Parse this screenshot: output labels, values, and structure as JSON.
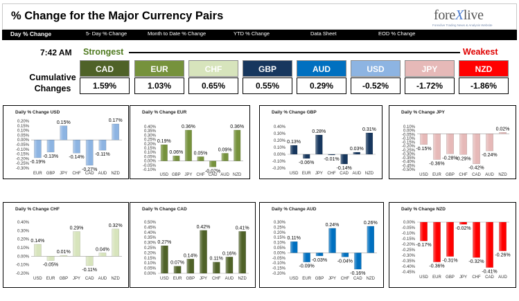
{
  "header": {
    "title": "% Change for the Major Currency Pairs",
    "logo": {
      "main_a": "fore",
      "main_x": "X",
      "main_b": "live",
      "sub": "Forexlive Trading News & Analysis Website"
    }
  },
  "nav": {
    "items": [
      {
        "label": "Day % Change",
        "active": true
      },
      {
        "label": "5- Day % Change",
        "active": false
      },
      {
        "label": "Month to Date % Change",
        "active": false
      },
      {
        "label": "YTD % Change",
        "active": false
      },
      {
        "label": "Data Sheet",
        "active": false
      },
      {
        "label": "EOD % Change",
        "active": false
      }
    ]
  },
  "summary": {
    "time": "7:42 AM",
    "strongest_label": "Strongest",
    "weakest_label": "Weakest",
    "cumulative_label_1": "Cumulative",
    "cumulative_label_2": "Changes",
    "currencies": [
      {
        "code": "CAD",
        "value": "1.59%",
        "color": "#4f6228"
      },
      {
        "code": "EUR",
        "value": "1.03%",
        "color": "#76923c"
      },
      {
        "code": "CHF",
        "value": "0.65%",
        "color": "#d7e4bc"
      },
      {
        "code": "GBP",
        "value": "0.55%",
        "color": "#17375e"
      },
      {
        "code": "AUD",
        "value": "0.29%",
        "color": "#0070c0"
      },
      {
        "code": "USD",
        "value": "-0.52%",
        "color": "#8db4e2"
      },
      {
        "code": "JPY",
        "value": "-1.72%",
        "color": "#e6b9b8"
      },
      {
        "code": "NZD",
        "value": "-1.86%",
        "color": "#ff0000"
      }
    ]
  },
  "chart_data": [
    {
      "type": "bar",
      "title": "Daily % Change USD",
      "categories": [
        "EUR",
        "GBP",
        "JPY",
        "CHF",
        "CAD",
        "AUD",
        "NZD"
      ],
      "values": [
        -0.19,
        -0.13,
        0.15,
        -0.14,
        -0.27,
        -0.11,
        0.17
      ],
      "labels": [
        "-0.19%",
        "-0.13%",
        "0.15%",
        "-0.14%",
        "-0.27%",
        "-0.11%",
        "0.17%"
      ],
      "ylim": [
        -0.3,
        0.2
      ],
      "yticks": [
        "0.20%",
        "0.15%",
        "0.10%",
        "0.05%",
        "0.00%",
        "-0.05%",
        "-0.10%",
        "-0.15%",
        "-0.20%",
        "-0.25%",
        "-0.30%"
      ],
      "color": "#8db4e2"
    },
    {
      "type": "bar",
      "title": "Daily % Change EUR",
      "categories": [
        "USD",
        "GBP",
        "JPY",
        "CHF",
        "CAD",
        "AUD",
        "NZD"
      ],
      "values": [
        0.19,
        0.06,
        0.36,
        0.05,
        -0.07,
        0.09,
        0.36
      ],
      "labels": [
        "0.19%",
        "0.06%",
        "0.36%",
        "0.05%",
        "-0.07%",
        "0.09%",
        "0.36%"
      ],
      "ylim": [
        -0.1,
        0.4
      ],
      "yticks": [
        "0.40%",
        "0.35%",
        "0.30%",
        "0.25%",
        "0.20%",
        "0.15%",
        "0.10%",
        "0.05%",
        "0.00%",
        "-0.05%",
        "-0.10%"
      ],
      "color": "#76923c"
    },
    {
      "type": "bar",
      "title": "Daily % Change GBP",
      "categories": [
        "USD",
        "EUR",
        "JPY",
        "CHF",
        "CAD",
        "AUD",
        "NZD"
      ],
      "values": [
        0.13,
        -0.06,
        0.28,
        -0.01,
        -0.14,
        0.03,
        0.31
      ],
      "labels": [
        "0.13%",
        "-0.06%",
        "0.28%",
        "-0.01%",
        "-0.14%",
        "0.03%",
        "0.31%"
      ],
      "ylim": [
        -0.2,
        0.4
      ],
      "yticks": [
        "0.40%",
        "0.30%",
        "0.20%",
        "0.10%",
        "0.00%",
        "-0.10%",
        "-0.20%"
      ],
      "color": "#17375e"
    },
    {
      "type": "bar",
      "title": "Daily % Change JPY",
      "categories": [
        "USD",
        "EUR",
        "GBP",
        "CHF",
        "CAD",
        "AUD",
        "NZD"
      ],
      "values": [
        -0.15,
        -0.36,
        -0.28,
        -0.29,
        -0.42,
        -0.24,
        0.02
      ],
      "labels": [
        "-0.15%",
        "-0.36%",
        "-0.28%",
        "-0.29%",
        "-0.42%",
        "-0.24%",
        "0.02%"
      ],
      "ylim": [
        -0.5,
        0.1
      ],
      "yticks": [
        "0.10%",
        "0.00%",
        "-0.05%",
        "-0.10%",
        "-0.15%",
        "-0.20%",
        "-0.25%",
        "-0.30%",
        "-0.35%",
        "-0.40%",
        "-0.45%",
        "-0.50%"
      ],
      "color": "#e6b9b8"
    },
    {
      "type": "bar",
      "title": "Daily % Change CHF",
      "categories": [
        "USD",
        "EUR",
        "GBP",
        "JPY",
        "CAD",
        "AUD",
        "NZD"
      ],
      "values": [
        0.14,
        -0.05,
        0.01,
        0.29,
        -0.11,
        0.04,
        0.32
      ],
      "labels": [
        "0.14%",
        "-0.05%",
        "0.01%",
        "0.29%",
        "-0.11%",
        "0.04%",
        "0.32%"
      ],
      "ylim": [
        -0.2,
        0.4
      ],
      "yticks": [
        "0.40%",
        "0.30%",
        "0.20%",
        "0.10%",
        "0.00%",
        "-0.10%",
        "-0.20%"
      ],
      "color": "#d7e4bc"
    },
    {
      "type": "bar",
      "title": "Daily % Change CAD",
      "categories": [
        "USD",
        "EUR",
        "GBP",
        "JPY",
        "CHF",
        "AUD",
        "NZD"
      ],
      "values": [
        0.27,
        0.07,
        0.14,
        0.42,
        0.11,
        0.16,
        0.41
      ],
      "labels": [
        "0.27%",
        "0.07%",
        "0.14%",
        "0.42%",
        "0.11%",
        "0.16%",
        "0.41%"
      ],
      "ylim": [
        0.0,
        0.5
      ],
      "yticks": [
        "0.50%",
        "0.45%",
        "0.40%",
        "0.35%",
        "0.30%",
        "0.25%",
        "0.20%",
        "0.15%",
        "0.10%",
        "0.05%",
        "0.00%"
      ],
      "color": "#4f6228"
    },
    {
      "type": "bar",
      "title": "Daily % Change AUD",
      "categories": [
        "USD",
        "EUR",
        "GBP",
        "JPY",
        "CHF",
        "CAD",
        "NZD"
      ],
      "values": [
        0.11,
        -0.09,
        -0.03,
        0.24,
        -0.04,
        -0.16,
        0.26
      ],
      "labels": [
        "0.11%",
        "-0.09%",
        "-0.03%",
        "0.24%",
        "-0.04%",
        "-0.16%",
        "0.26%"
      ],
      "ylim": [
        -0.2,
        0.3
      ],
      "yticks": [
        "0.30%",
        "0.25%",
        "0.20%",
        "0.15%",
        "0.10%",
        "0.05%",
        "0.00%",
        "-0.05%",
        "-0.10%",
        "-0.15%",
        "-0.20%"
      ],
      "color": "#0070c0"
    },
    {
      "type": "bar",
      "title": "Daily % Change NZD",
      "categories": [
        "USD",
        "EUR",
        "GBP",
        "JPY",
        "CHF",
        "CAD",
        "AUD"
      ],
      "values": [
        -0.17,
        -0.36,
        -0.31,
        -0.02,
        -0.32,
        -0.41,
        -0.26
      ],
      "labels": [
        "-0.17%",
        "-0.36%",
        "-0.31%",
        "-0.02%",
        "-0.32%",
        "-0.41%",
        "-0.26%"
      ],
      "ylim": [
        -0.45,
        0.0
      ],
      "yticks": [
        "0.00%",
        "-0.05%",
        "-0.10%",
        "-0.15%",
        "-0.20%",
        "-0.25%",
        "-0.30%",
        "-0.35%",
        "-0.40%",
        "-0.45%"
      ],
      "color": "#ff0000"
    }
  ]
}
